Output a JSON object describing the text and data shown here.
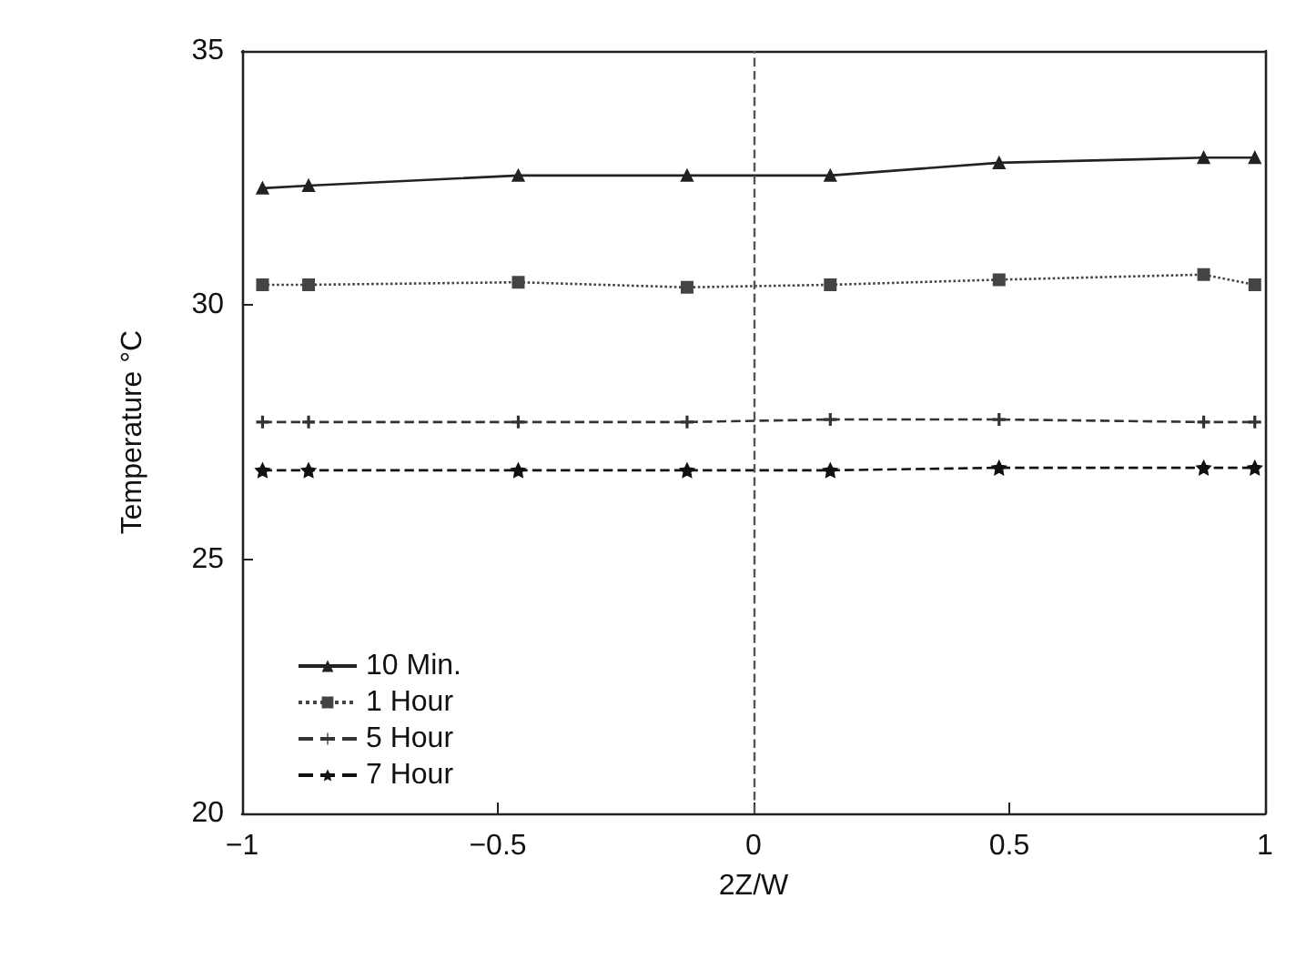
{
  "chart_data": {
    "type": "line",
    "xlabel": "2Z/W",
    "ylabel": "Temperature °C",
    "x": [
      -0.96,
      -0.87,
      -0.46,
      -0.13,
      0.15,
      0.48,
      0.88,
      0.98
    ],
    "xlim": [
      -1,
      1
    ],
    "xticks": [
      -1,
      -0.5,
      0,
      0.5,
      1
    ],
    "ylim": [
      20,
      35
    ],
    "yticks": [
      20,
      25,
      30,
      35
    ],
    "grid": false,
    "legend": "bottom left",
    "ref_lines": [
      {
        "axis": "x",
        "value": 0,
        "line_style": "dashed",
        "color": "#555555"
      }
    ],
    "series": [
      {
        "name": "10 Min.",
        "color": "#222222",
        "marker": "triangle",
        "line_style": "solid",
        "values": [
          32.3,
          32.35,
          32.55,
          32.55,
          32.55,
          32.8,
          32.9,
          32.9
        ]
      },
      {
        "name": "1 Hour",
        "color": "#444444",
        "marker": "square",
        "line_style": "dotted",
        "values": [
          30.4,
          30.4,
          30.45,
          30.35,
          30.4,
          30.5,
          30.6,
          30.4
        ]
      },
      {
        "name": "5 Hour",
        "color": "#333333",
        "marker": "cross",
        "line_style": "dashed",
        "values": [
          27.7,
          27.7,
          27.7,
          27.7,
          27.75,
          27.75,
          27.7,
          27.7
        ]
      },
      {
        "name": "7 Hour",
        "color": "#111111",
        "marker": "star",
        "line_style": "dashed",
        "values": [
          26.75,
          26.75,
          26.75,
          26.75,
          26.75,
          26.8,
          26.8,
          26.8
        ]
      }
    ]
  }
}
